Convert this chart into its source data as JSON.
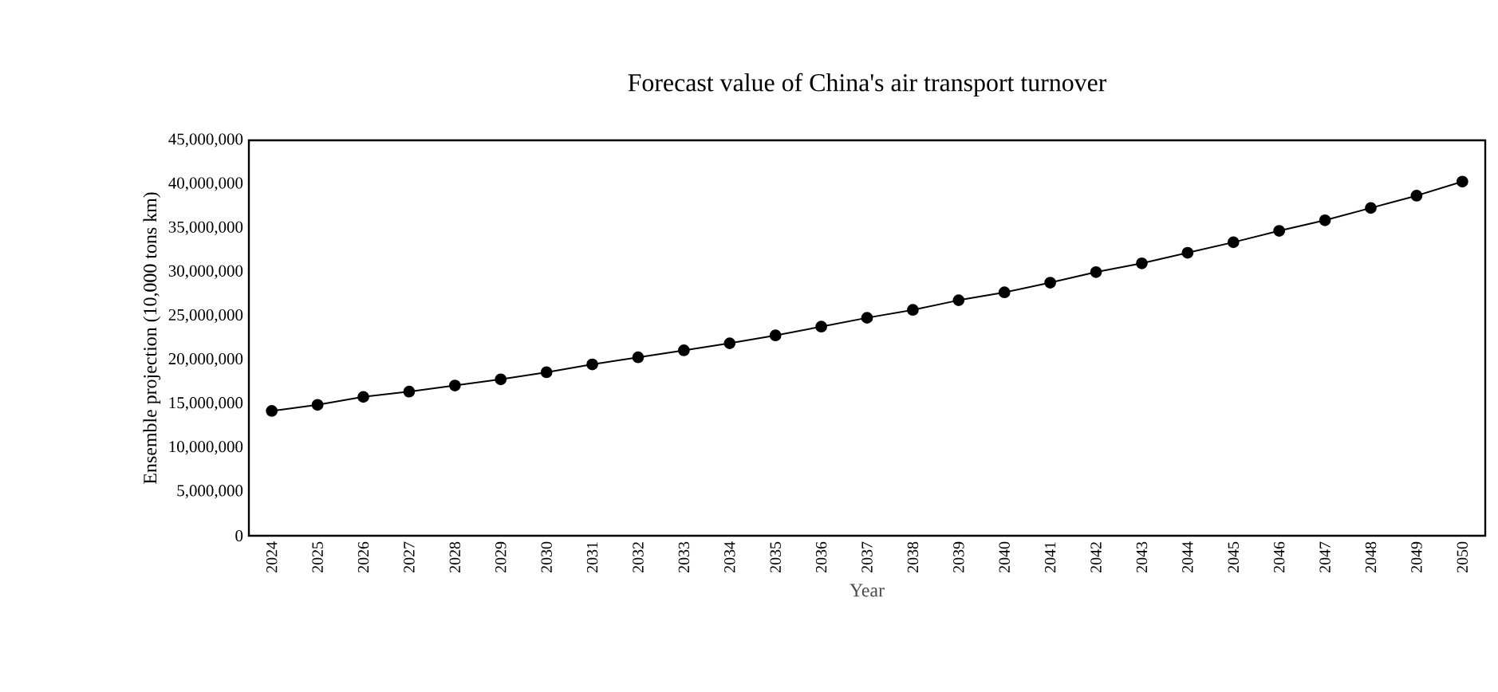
{
  "chart_data": {
    "type": "line",
    "title": "Forecast value of China's air transport turnover",
    "xlabel": "Year",
    "ylabel": "Ensemble projection (10,000 tons km)",
    "categories": [
      "2024",
      "2025",
      "2026",
      "2027",
      "2028",
      "2029",
      "2030",
      "2031",
      "2032",
      "2033",
      "2034",
      "2035",
      "2036",
      "2037",
      "2038",
      "2039",
      "2040",
      "2041",
      "2042",
      "2043",
      "2044",
      "2045",
      "2046",
      "2047",
      "2048",
      "2049",
      "2050"
    ],
    "series": [
      {
        "color": "#000000",
        "values": [
          14200000,
          14900000,
          15800000,
          16400000,
          17100000,
          17800000,
          18600000,
          19500000,
          20300000,
          21100000,
          21900000,
          22800000,
          23800000,
          24800000,
          25700000,
          26800000,
          27700000,
          28800000,
          30000000,
          31000000,
          32200000,
          33400000,
          34700000,
          35900000,
          37300000,
          38700000,
          40300000
        ]
      }
    ],
    "ylim": [
      0,
      45000000
    ],
    "yticks": [
      0,
      {
        "value": 5000000,
        "label": "5,000,000"
      },
      {
        "value": 10000000,
        "label": "10,000,000"
      },
      {
        "value": 15000000,
        "label": "15,000,000"
      },
      {
        "value": 20000000,
        "label": "20,000,000"
      },
      {
        "value": 25000000,
        "label": "25,000,000"
      },
      {
        "value": 30000000,
        "label": "30,000,000"
      },
      {
        "value": 35000000,
        "label": "35,000,000"
      },
      {
        "value": 40000000,
        "label": "40,000,000"
      },
      {
        "value": 45000000,
        "label": "45,000,000"
      }
    ],
    "grid": false,
    "marker": "circle",
    "line_style": "solid"
  }
}
